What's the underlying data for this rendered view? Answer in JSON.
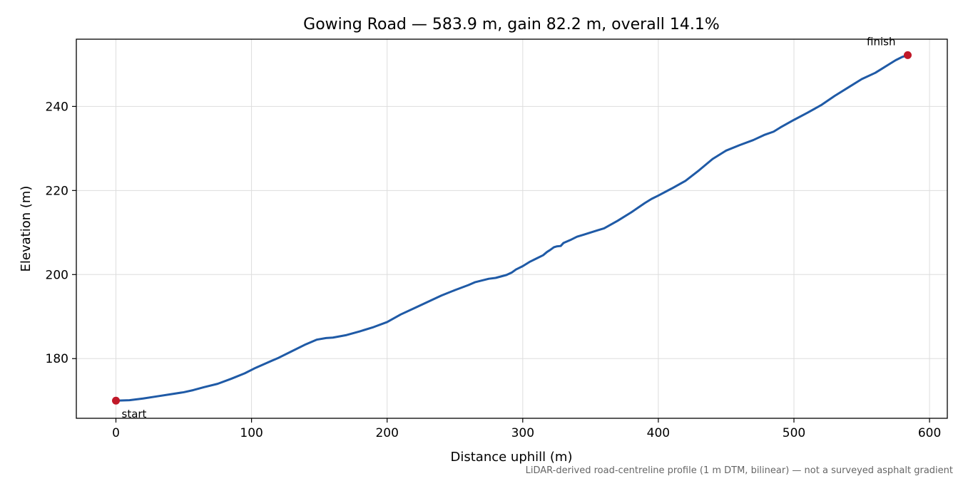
{
  "chart_data": {
    "type": "line",
    "title": "Gowing Road — 583.9 m, gain 82.2 m, overall 14.1%",
    "xlabel": "Distance uphill (m)",
    "ylabel": "Elevation (m)",
    "footnote": "LiDAR-derived road-centreline profile (1 m DTM, bilinear) — not a surveyed asphalt gradient",
    "xlim": [
      -29.2,
      613.1
    ],
    "ylim": [
      165.8,
      256.0
    ],
    "x_ticks": [
      0,
      100,
      200,
      300,
      400,
      500,
      600
    ],
    "x_tick_labels": [
      "0",
      "100",
      "200",
      "300",
      "400",
      "500",
      "600"
    ],
    "y_ticks": [
      180,
      200,
      220,
      240
    ],
    "y_tick_labels": [
      "180",
      "200",
      "220",
      "240"
    ],
    "grid": true,
    "line_color": "#1f5aa6",
    "marker_color": "#c01828",
    "series": [
      {
        "x": [
          0,
          10,
          20,
          30,
          40,
          50,
          57,
          65,
          75,
          85,
          95,
          103,
          110,
          120,
          130,
          140,
          148,
          155,
          160,
          170,
          180,
          190,
          200,
          210,
          220,
          230,
          240,
          250,
          260,
          265,
          270,
          275,
          280,
          288,
          292,
          295,
          300,
          305,
          310,
          315,
          318,
          320,
          323,
          325,
          328,
          330,
          335,
          340,
          345,
          350,
          355,
          360,
          370,
          380,
          390,
          395,
          400,
          410,
          420,
          430,
          440,
          450,
          460,
          470,
          478,
          485,
          490,
          500,
          510,
          520,
          530,
          540,
          550,
          560,
          565,
          570,
          575,
          580,
          583.9
        ],
        "y": [
          170.0,
          170.1,
          170.5,
          171.0,
          171.5,
          172.0,
          172.5,
          173.2,
          174.0,
          175.2,
          176.5,
          177.8,
          178.8,
          180.2,
          181.8,
          183.4,
          184.5,
          184.9,
          185.0,
          185.6,
          186.5,
          187.5,
          188.7,
          190.5,
          192.0,
          193.5,
          195.0,
          196.3,
          197.5,
          198.2,
          198.6,
          199.0,
          199.2,
          199.9,
          200.5,
          201.2,
          202.0,
          203.0,
          203.8,
          204.6,
          205.4,
          205.8,
          206.5,
          206.7,
          206.8,
          207.5,
          208.2,
          209.0,
          209.5,
          210.0,
          210.5,
          211.0,
          212.8,
          214.8,
          217.0,
          218.0,
          218.8,
          220.5,
          222.3,
          224.8,
          227.5,
          229.5,
          230.8,
          232.0,
          233.2,
          234.0,
          235.0,
          236.8,
          238.5,
          240.3,
          242.5,
          244.5,
          246.5,
          248.0,
          249.0,
          250.0,
          251.0,
          251.8,
          252.2
        ]
      }
    ],
    "markers": [
      {
        "label": "start",
        "x": 0,
        "y": 170.0
      },
      {
        "label": "finish",
        "x": 583.9,
        "y": 252.2
      }
    ]
  }
}
